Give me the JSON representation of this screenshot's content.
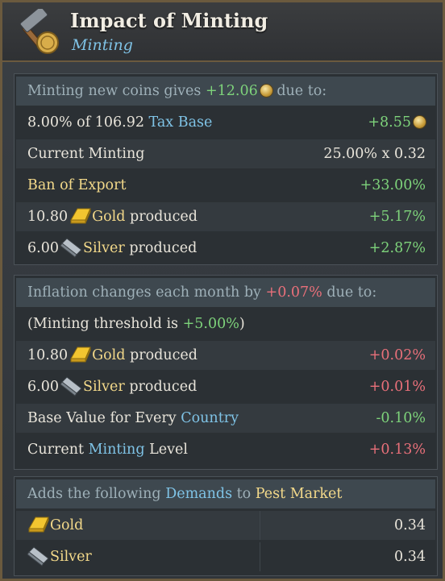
{
  "header": {
    "title": "Impact of Minting",
    "subtitle": "Minting",
    "icon": "minting-hammer-coin-icon"
  },
  "minting_section": {
    "heading_prefix": "Minting new coins gives",
    "heading_value": "+12.06",
    "heading_suffix": "due to:",
    "rows": [
      {
        "label_prefix": "8.00% of 106.92",
        "label_link": "Tax Base",
        "value": "+8.55"
      },
      {
        "label": "Current Minting",
        "value": "25.00% x 0.32"
      },
      {
        "label": "Ban of Export",
        "value": "+33.00%"
      },
      {
        "amount": "10.80",
        "good": "Gold",
        "suffix": "produced",
        "value": "+5.17%"
      },
      {
        "amount": "6.00",
        "good": "Silver",
        "suffix": "produced",
        "value": "+2.87%"
      }
    ]
  },
  "inflation_section": {
    "heading_prefix": "Inflation changes each month by",
    "heading_value": "+0.07%",
    "heading_suffix": "due to:",
    "threshold_prefix": "(Minting threshold is",
    "threshold_value": "+5.00%",
    "threshold_suffix": ")",
    "rows": [
      {
        "amount": "10.80",
        "good": "Gold",
        "suffix": "produced",
        "value": "+0.02%"
      },
      {
        "amount": "6.00",
        "good": "Silver",
        "suffix": "produced",
        "value": "+0.01%"
      },
      {
        "label_prefix": "Base Value for Every",
        "label_link": "Country",
        "value": "-0.10%"
      },
      {
        "label_prefix": "Current",
        "label_link": "Minting",
        "label_suffix": "Level",
        "value": "+0.13%"
      }
    ]
  },
  "demands_section": {
    "heading_prefix": "Adds the following",
    "heading_link": "Demands",
    "heading_mid": "to",
    "heading_market": "Pest Market",
    "rows": [
      {
        "good": "Gold",
        "value": "0.34"
      },
      {
        "good": "Silver",
        "value": "0.34"
      }
    ]
  },
  "colors": {
    "positive": "#7ed37b",
    "negative": "#e9707a",
    "link": "#7fc3e6",
    "highlight": "#f3d98a"
  }
}
